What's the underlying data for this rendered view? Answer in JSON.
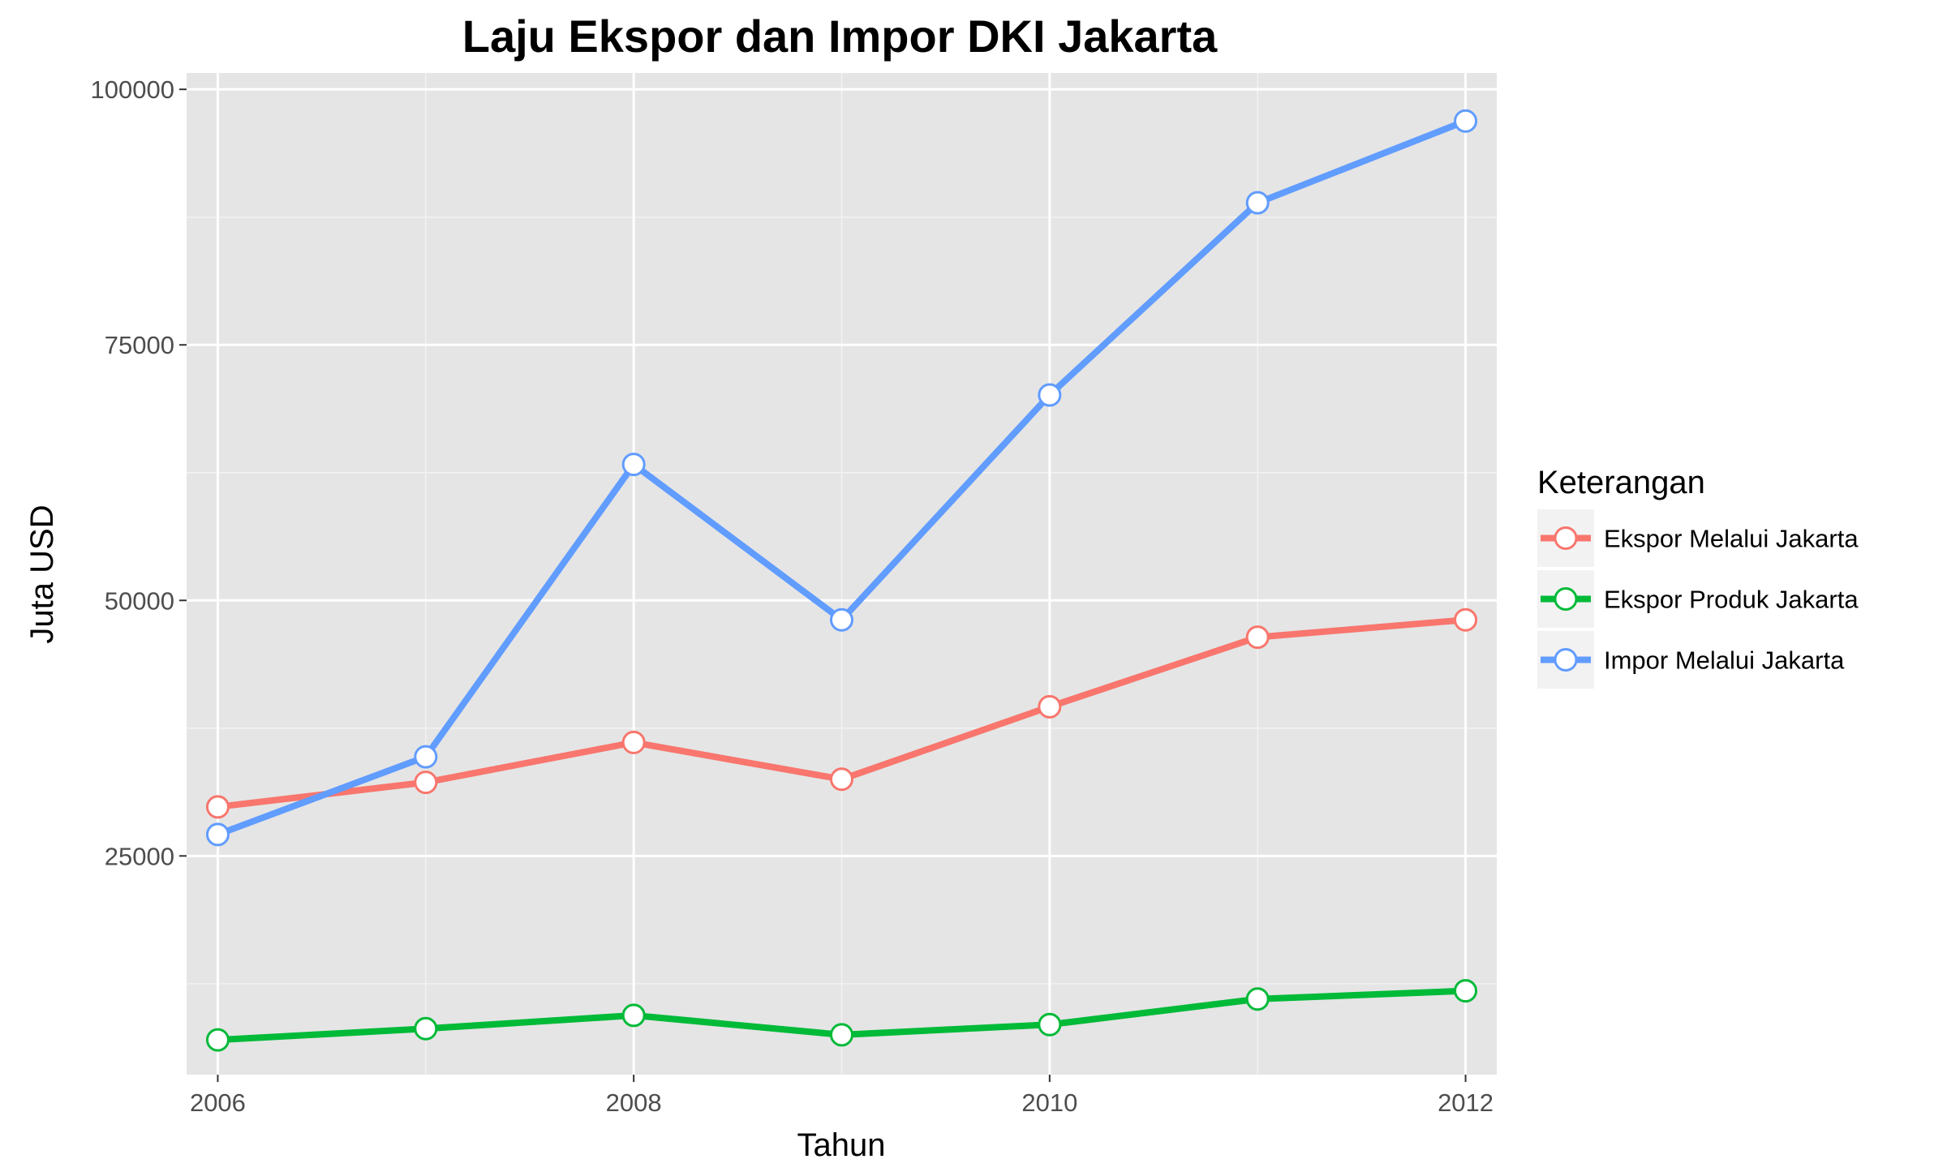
{
  "chart_data": {
    "type": "line",
    "title": "Laju Ekspor dan Impor DKI Jakarta",
    "xlabel": "Tahun",
    "ylabel": "Juta USD",
    "x": [
      2006,
      2007,
      2008,
      2009,
      2010,
      2011,
      2012
    ],
    "x_ticks": [
      "2006",
      "2008",
      "2010",
      "2012"
    ],
    "y_ticks": [
      "25000",
      "50000",
      "75000",
      "100000"
    ],
    "xlim": [
      2005.85,
      2012.15
    ],
    "ylim": [
      3600,
      101600
    ],
    "grid": true,
    "legend_position": "right",
    "legend_title": "Keterangan",
    "series": [
      {
        "name": "Ekspor Melalui Jakarta",
        "color": "#F8766D",
        "values": [
          29800,
          32200,
          36100,
          32500,
          39600,
          46400,
          48100
        ]
      },
      {
        "name": "Ekspor Produk Jakarta",
        "color": "#00BA38",
        "values": [
          7000,
          8100,
          9400,
          7500,
          8500,
          11000,
          11800
        ]
      },
      {
        "name": "Impor Melalui Jakarta",
        "color": "#619CFF",
        "values": [
          27100,
          34700,
          63300,
          48100,
          70100,
          88900,
          96900
        ]
      }
    ]
  }
}
